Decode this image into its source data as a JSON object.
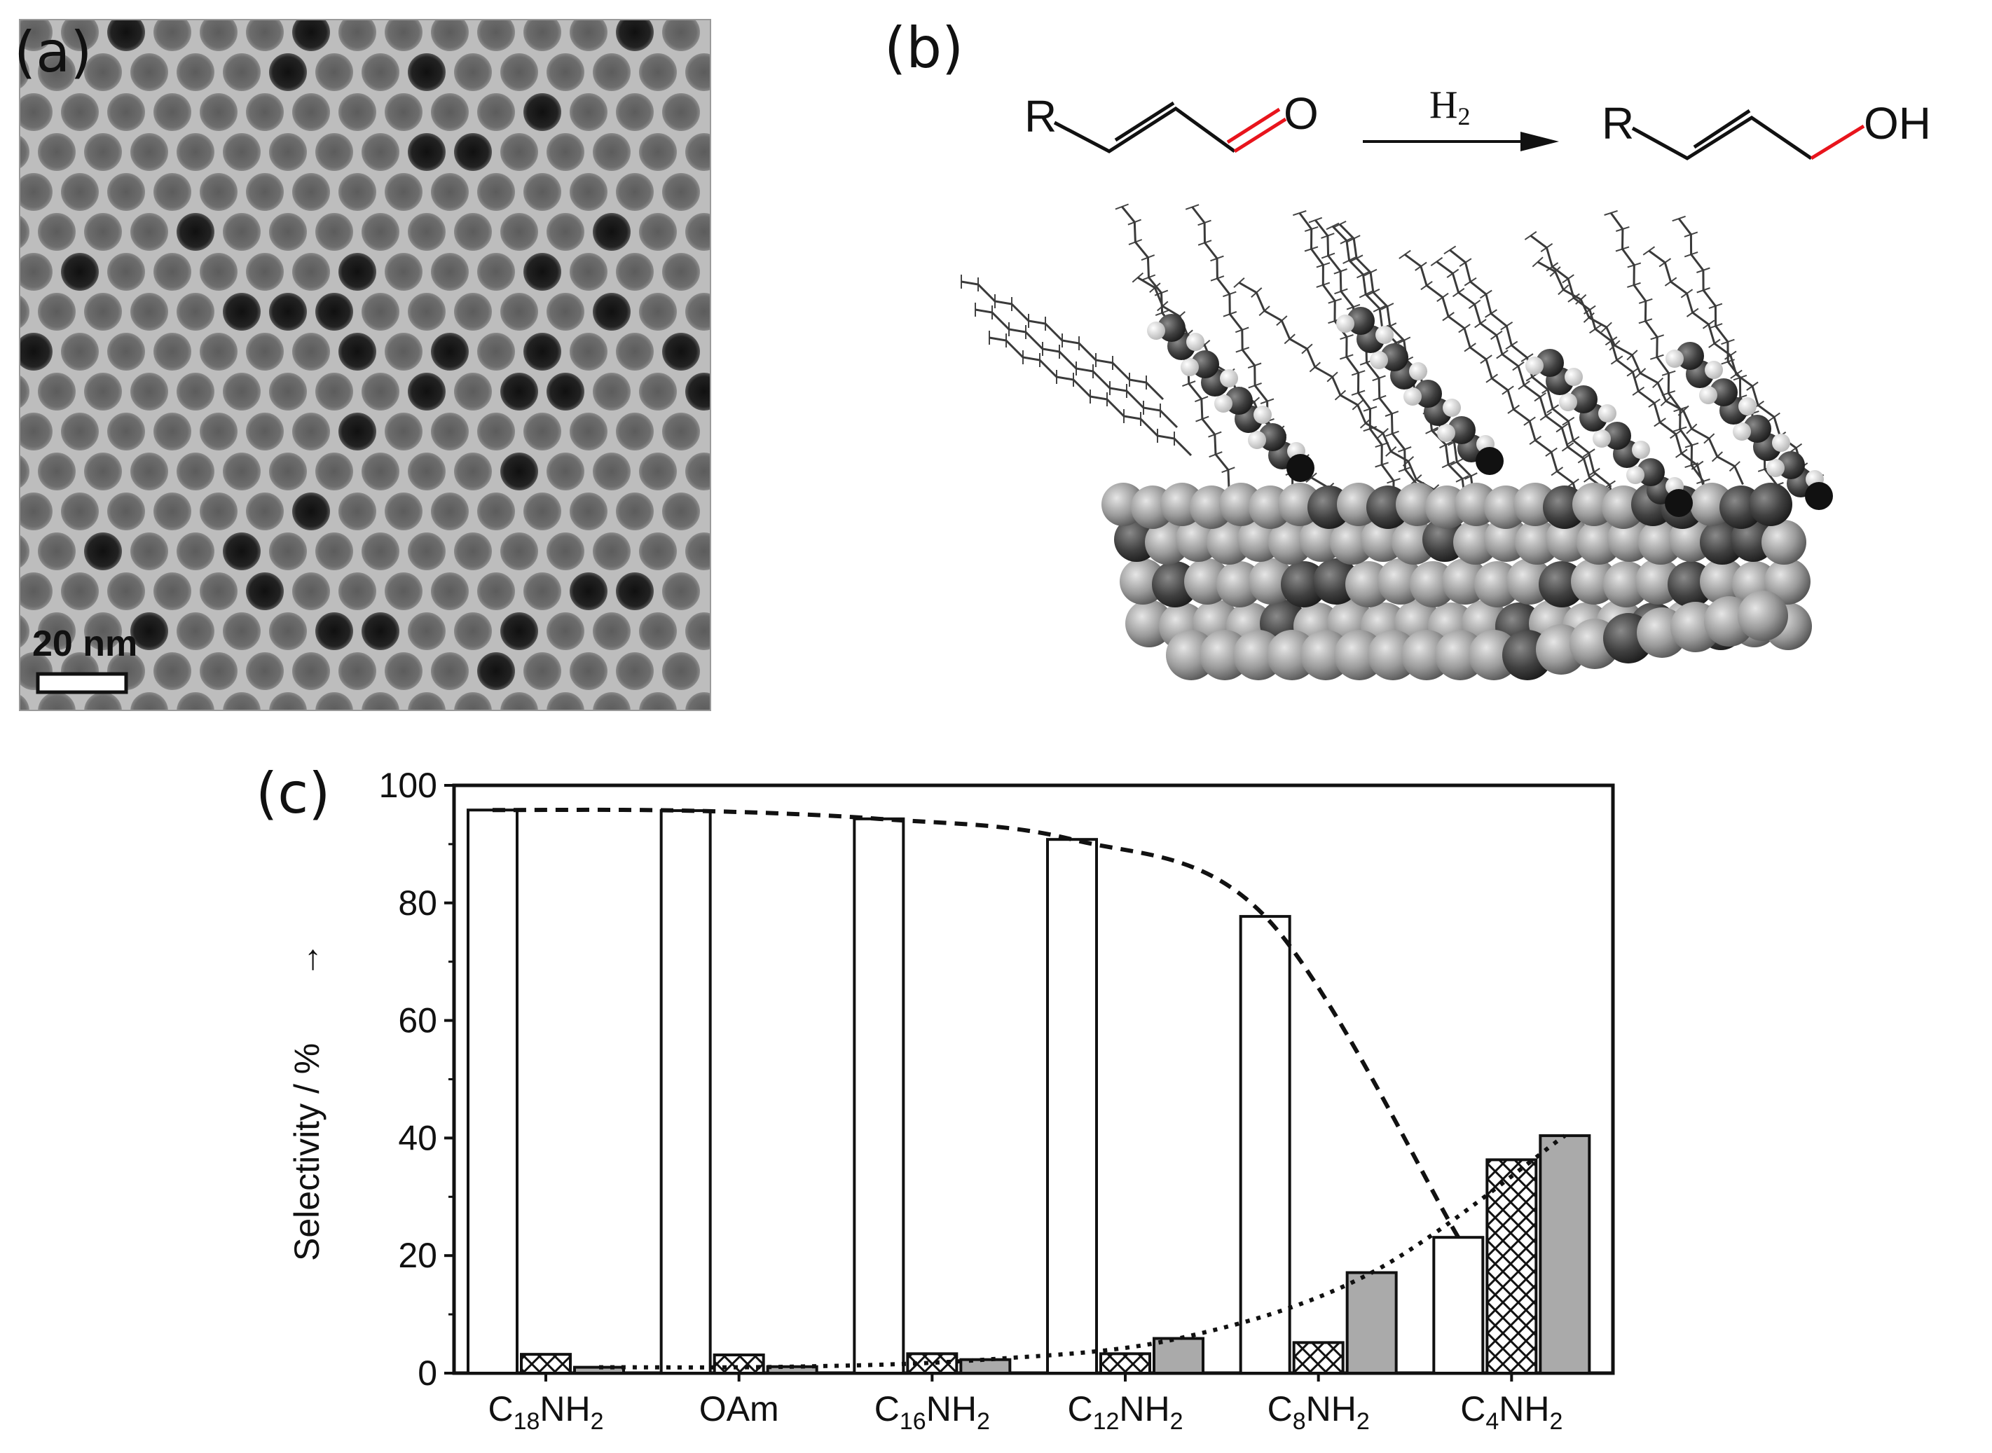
{
  "panels": {
    "a": {
      "label": "(a)",
      "scale_bar_text": "20 nm"
    },
    "b": {
      "label": "(b)",
      "reactant": {
        "R": "R",
        "O": "O"
      },
      "reagent_H": "H",
      "reagent_sub": "2",
      "product": {
        "R": "R",
        "OH": "OH"
      }
    },
    "c": {
      "label": "(c)"
    }
  },
  "colors": {
    "bond_highlight": "#e8141c",
    "bar_open": "#ffffff",
    "bar_gray": "#aaaaaa",
    "tem_background": "#bdbdbd",
    "ink": "#111111"
  },
  "chart_data": {
    "type": "bar",
    "title": "",
    "xlabel": "",
    "ylabel": "Selectivity / %",
    "ylabel_arrow": "→",
    "ylim": [
      0,
      100
    ],
    "yticks": [
      "0",
      "20",
      "40",
      "60",
      "80",
      "100"
    ],
    "categories": [
      {
        "main": "C",
        "sub": "18",
        "tail": "NH",
        "tail_sub": "2"
      },
      {
        "main": "OAm",
        "sub": "",
        "tail": "",
        "tail_sub": ""
      },
      {
        "main": "C",
        "sub": "16",
        "tail": "NH",
        "tail_sub": "2"
      },
      {
        "main": "C",
        "sub": "12",
        "tail": "NH",
        "tail_sub": "2"
      },
      {
        "main": "C",
        "sub": "8",
        "tail": "NH",
        "tail_sub": "2"
      },
      {
        "main": "C",
        "sub": "4",
        "tail": "NH",
        "tail_sub": "2"
      }
    ],
    "series": [
      {
        "name": "open",
        "pattern": "open",
        "values": [
          95.8,
          95.7,
          94.3,
          90.8,
          77.7,
          23.1
        ]
      },
      {
        "name": "hatched",
        "pattern": "crosshatch",
        "values": [
          3.2,
          3.1,
          3.3,
          3.3,
          5.2,
          36.3
        ]
      },
      {
        "name": "gray",
        "pattern": "gray",
        "values": [
          1.0,
          1.1,
          2.3,
          5.9,
          17.1,
          40.4
        ]
      }
    ],
    "trend_lines": [
      {
        "name": "open trend",
        "style": "dashed",
        "values": [
          95.8,
          95.7,
          94.3,
          90.8,
          77.7,
          23.1
        ]
      },
      {
        "name": "gray trend",
        "style": "dotted",
        "values": [
          1.0,
          1.1,
          2.3,
          5.9,
          17.1,
          40.4
        ]
      }
    ]
  }
}
